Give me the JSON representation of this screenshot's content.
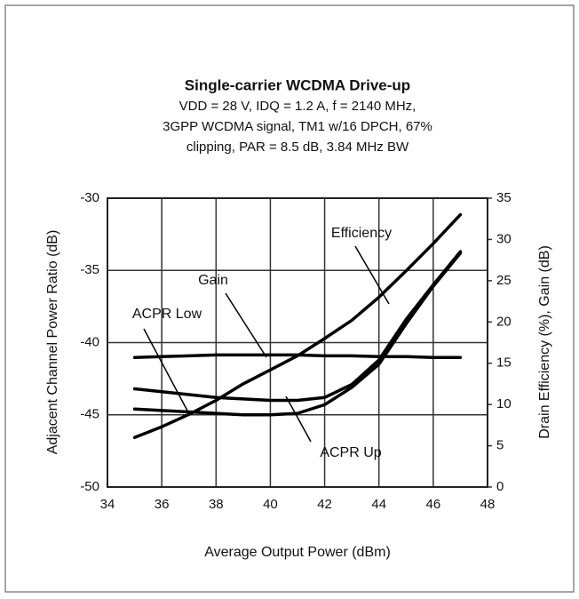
{
  "chart_data": {
    "type": "line",
    "title": "Single-carrier WCDMA Drive-up",
    "subtitle": [
      "VDD = 28 V, IDQ = 1.2 A, f = 2140 MHz,",
      "3GPP WCDMA signal, TM1 w/16 DPCH, 67%",
      "clipping, PAR = 8.5 dB, 3.84 MHz BW"
    ],
    "x_label": "Average Output Power (dBm)",
    "y_label": "Adjacent Channel Power Ratio (dB)",
    "y2_label": "Drain Efficiency (%), Gain (dB)",
    "x": [
      35,
      36,
      37,
      38,
      39,
      40,
      41,
      42,
      43,
      44,
      45,
      46,
      47
    ],
    "xlim": [
      34,
      48
    ],
    "xticks": [
      34,
      36,
      38,
      40,
      42,
      44,
      46,
      48
    ],
    "ylim": [
      -50,
      -30
    ],
    "yticks": [
      -50,
      -45,
      -40,
      -35,
      -30
    ],
    "y2lim": [
      0,
      35
    ],
    "y2ticks": [
      0,
      5,
      10,
      15,
      20,
      25,
      30,
      35
    ],
    "grid": true,
    "series": [
      {
        "name": "Efficiency",
        "color": "#000000",
        "axis": "y2",
        "values": [
          6.0,
          7.3,
          8.8,
          10.5,
          12.5,
          14.2,
          15.9,
          18.0,
          20.2,
          23.0,
          26.2,
          29.5,
          33.0
        ]
      },
      {
        "name": "Gain",
        "color": "#000000",
        "axis": "y2",
        "values": [
          15.7,
          15.8,
          15.9,
          16.0,
          16.0,
          16.0,
          16.0,
          15.9,
          15.9,
          15.8,
          15.8,
          15.7,
          15.7
        ]
      },
      {
        "name": "ACPR Low",
        "color": "#000000",
        "values": [
          -43.2,
          -43.4,
          -43.6,
          -43.8,
          -43.9,
          -44.0,
          -44.0,
          -43.8,
          -42.9,
          -41.2,
          -38.4,
          -36.0,
          -33.7
        ]
      },
      {
        "name": "ACPR Up",
        "color": "#000000",
        "values": [
          -44.6,
          -44.7,
          -44.8,
          -44.9,
          -45.0,
          -45.0,
          -44.9,
          -44.3,
          -43.1,
          -41.5,
          -38.7,
          -36.1,
          -33.8
        ]
      }
    ]
  }
}
